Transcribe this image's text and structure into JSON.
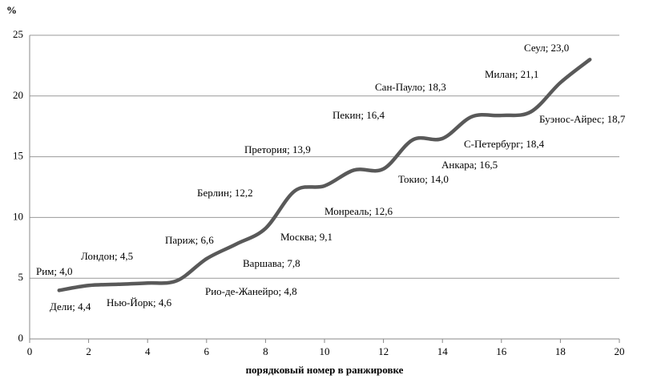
{
  "chart_data": {
    "type": "line",
    "y_label": "%",
    "x_label": "порядковый номер в ранжировке",
    "x": [
      1,
      2,
      3,
      4,
      5,
      6,
      7,
      8,
      9,
      10,
      11,
      12,
      13,
      14,
      15,
      16,
      17,
      18,
      19
    ],
    "values": [
      4.0,
      4.4,
      4.5,
      4.6,
      4.8,
      6.6,
      7.8,
      9.1,
      12.2,
      12.6,
      13.9,
      14.0,
      16.4,
      16.5,
      18.3,
      18.4,
      18.7,
      21.1,
      23.0
    ],
    "value_labels": [
      "Рим; 4,0",
      "Дели; 4,4",
      "Лондон; 4,5",
      "Нью-Йорк; 4,6",
      "Рио-де-Жанейро; 4,8",
      "Париж; 6,6",
      "Варшава; 7,8",
      "Москва; 9,1",
      "Берлин; 12,2",
      "Монреаль; 12,6",
      "Претория; 13,9",
      "Токио; 14,0",
      "Пекин; 16,4",
      "Анкара; 16,5",
      "Сан-Пауло; 18,3",
      "С-Петербург; 18,4",
      "Буэнос-Айрес; 18,7",
      "Милан; 21,1",
      "Сеул; 23,0"
    ],
    "color": "#595959",
    "xlim": [
      0,
      20
    ],
    "xticks": [
      0,
      2,
      4,
      6,
      8,
      10,
      12,
      14,
      16,
      18,
      20
    ],
    "ylim": [
      0,
      25
    ],
    "yticks": [
      0,
      5,
      10,
      15,
      20,
      25
    ],
    "grid": true
  }
}
